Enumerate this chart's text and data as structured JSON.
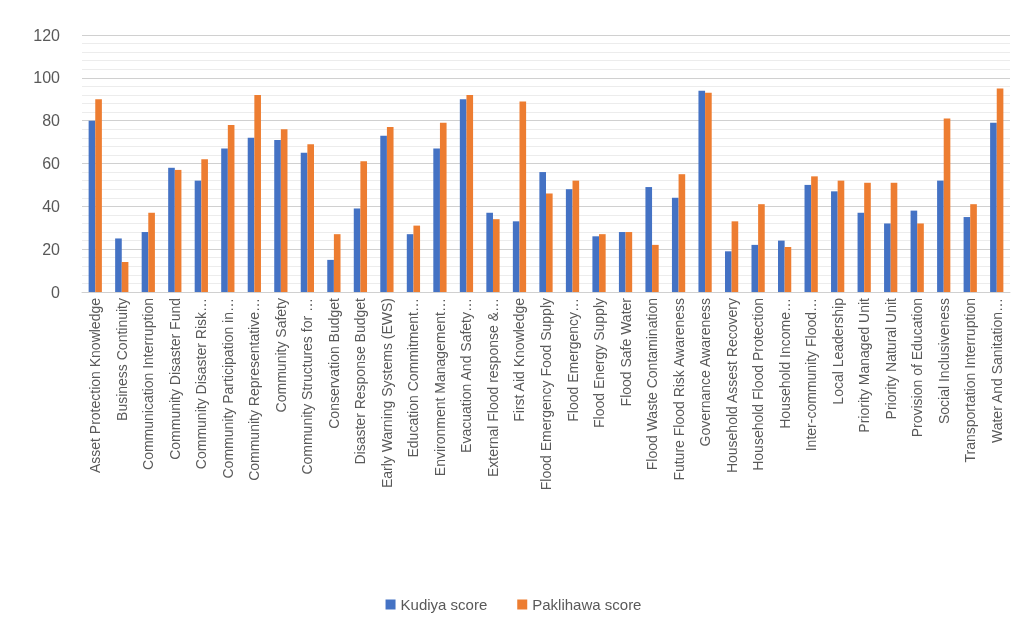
{
  "chart_data": {
    "type": "bar",
    "categories": [
      "Asset Protection Knowledge",
      "Business Continuity",
      "Communication Interruption",
      "Community Disaster Fund",
      "Community Disaster Risk…",
      "Community Participation in…",
      "Community Representative…",
      "Community Safety",
      "Community Structures for …",
      "Conservation Budget",
      "Disaster Response Budget",
      "Early Warning Systems (EWS)",
      "Education Commitment…",
      "Environment Management…",
      "Evacuation And Safety…",
      "External Flood response &…",
      "First Aid Knowledge",
      "Flood Emergency Food Supply",
      "Flood Emergency…",
      "Flood Energy Supply",
      "Flood Safe Water",
      "Flood Waste Contamination",
      "Future Flood Risk Awareness",
      "Governance Awareness",
      "Household Assest Recovery",
      "Household Flood Protection",
      "Household Income…",
      "Inter-community Flood…",
      "Local Leadership",
      "Priority Managed Unit",
      "Priority Natural Unit",
      "Provision of Education",
      "Social Inclusiveness",
      "Transportation Interruption",
      "Water And Sanitation…"
    ],
    "series": [
      {
        "name": "Kudiya score",
        "color": "#4472c4",
        "values": [
          80,
          25,
          28,
          58,
          52,
          67,
          72,
          71,
          65,
          15,
          39,
          73,
          27,
          67,
          90,
          37,
          33,
          56,
          48,
          26,
          28,
          49,
          44,
          94,
          19,
          22,
          24,
          50,
          47,
          37,
          32,
          38,
          52,
          35,
          79
        ]
      },
      {
        "name": "Paklihawa score",
        "color": "#ed7d31",
        "values": [
          90,
          14,
          37,
          57,
          62,
          78,
          92,
          76,
          69,
          27,
          61,
          77,
          31,
          79,
          92,
          34,
          89,
          46,
          52,
          27,
          28,
          22,
          55,
          93,
          33,
          41,
          21,
          54,
          52,
          51,
          51,
          32,
          81,
          41,
          95
        ]
      }
    ],
    "ylim": [
      0,
      120
    ],
    "yticks": [
      0,
      20,
      40,
      60,
      80,
      100,
      120
    ],
    "grid": "y",
    "legend": "bottom"
  }
}
